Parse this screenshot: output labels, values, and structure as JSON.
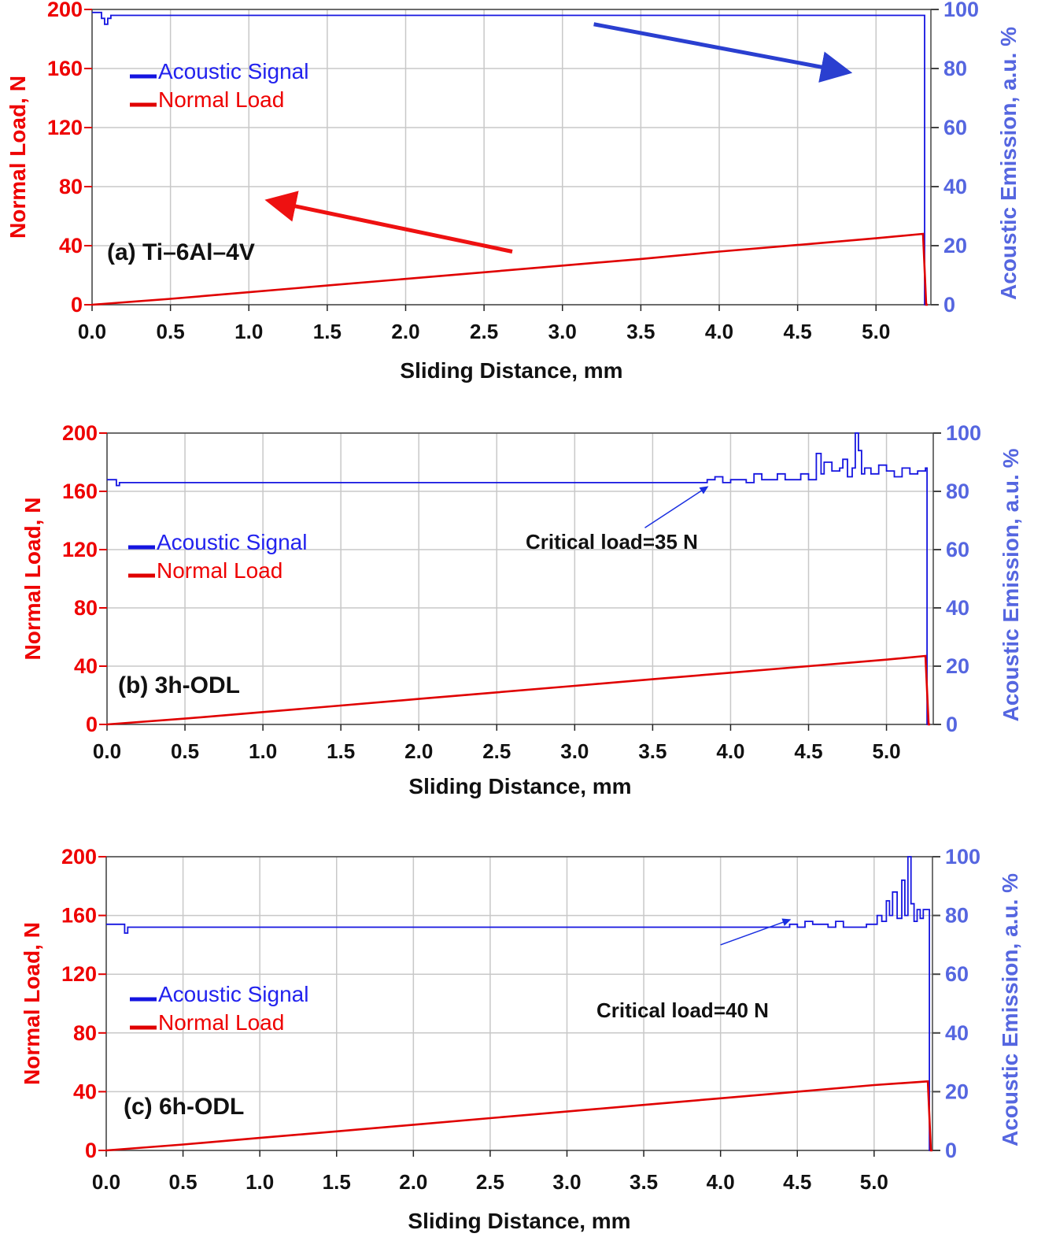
{
  "chart_data": [
    {
      "type": "line",
      "panel_label": "(a) Ti–6Al–4V",
      "xlabel": "Sliding Distance, mm",
      "ylabel": "Normal Load, N",
      "y2label": "Acoustic Emission, a.u. %",
      "x_ticks": [
        "0.0",
        "0.5",
        "1.0",
        "1.5",
        "2.0",
        "2.5",
        "3.0",
        "3.5",
        "4.0",
        "4.5",
        "5.0"
      ],
      "y_ticks": [
        "0",
        "40",
        "80",
        "120",
        "160",
        "200"
      ],
      "y2_ticks": [
        "0",
        "20",
        "40",
        "60",
        "80",
        "100"
      ],
      "xlim": [
        0,
        5.35
      ],
      "ylim": [
        0,
        200
      ],
      "y2lim": [
        0,
        100
      ],
      "grid": true,
      "legend_position": "upper-left",
      "legend": [
        "Acoustic Signal",
        "Normal Load"
      ],
      "series": [
        {
          "name": "Acoustic Signal",
          "axis": "right",
          "color": "#1515e0",
          "x": [
            0,
            0.04,
            0.06,
            0.08,
            0.1,
            0.12,
            0.15,
            0.5,
            1.0,
            2.0,
            3.0,
            4.0,
            5.0,
            5.3,
            5.31,
            5.32
          ],
          "y": [
            99,
            99,
            97,
            95,
            97,
            98,
            98,
            98,
            98,
            98,
            98,
            98,
            98,
            98,
            0,
            0
          ]
        },
        {
          "name": "Normal Load",
          "axis": "left",
          "color": "#e00000",
          "x": [
            0,
            0.5,
            1.0,
            1.5,
            2.0,
            2.5,
            3.0,
            3.5,
            4.0,
            4.5,
            5.0,
            5.3,
            5.32,
            5.33
          ],
          "y": [
            0,
            4,
            8.5,
            13,
            17.5,
            22,
            26.5,
            31,
            36,
            40.5,
            45,
            48,
            0,
            0
          ]
        }
      ],
      "arrows": [
        {
          "color": "#2a3fd0",
          "from": [
            3.2,
            190
          ],
          "to": [
            4.8,
            158
          ]
        },
        {
          "color": "#ee1111",
          "from": [
            2.68,
            36
          ],
          "to": [
            1.15,
            70
          ]
        }
      ]
    },
    {
      "type": "line",
      "panel_label": "(b) 3h-ODL",
      "xlabel": "Sliding Distance, mm",
      "ylabel": "Normal Load, N",
      "y2label": "Acoustic Emission, a.u. %",
      "x_ticks": [
        "0.0",
        "0.5",
        "1.0",
        "1.5",
        "2.0",
        "2.5",
        "3.0",
        "3.5",
        "4.0",
        "4.5",
        "5.0"
      ],
      "y_ticks": [
        "0",
        "40",
        "80",
        "120",
        "160",
        "200"
      ],
      "y2_ticks": [
        "0",
        "20",
        "40",
        "60",
        "80",
        "100"
      ],
      "xlim": [
        0,
        5.3
      ],
      "ylim": [
        0,
        200
      ],
      "y2lim": [
        0,
        100
      ],
      "grid": true,
      "legend_position": "center-left",
      "legend": [
        "Acoustic Signal",
        "Normal Load"
      ],
      "annotation": "Critical load=35 N",
      "series": [
        {
          "name": "Acoustic Signal",
          "axis": "right",
          "color": "#1515e0",
          "x": [
            0,
            0.04,
            0.06,
            0.08,
            0.1,
            0.5,
            1.0,
            2.0,
            3.0,
            3.5,
            3.85,
            3.9,
            3.95,
            4.0,
            4.1,
            4.15,
            4.2,
            4.3,
            4.35,
            4.4,
            4.45,
            4.5,
            4.55,
            4.58,
            4.6,
            4.65,
            4.7,
            4.72,
            4.75,
            4.78,
            4.8,
            4.82,
            4.84,
            4.86,
            4.9,
            4.95,
            5.0,
            5.05,
            5.1,
            5.15,
            5.2,
            5.25,
            5.26,
            5.27
          ],
          "y": [
            84,
            84,
            82,
            83,
            83,
            83,
            83,
            83,
            83,
            83,
            84,
            85,
            83,
            84,
            83,
            86,
            84,
            86,
            84,
            84,
            86,
            84,
            93,
            86,
            90,
            87,
            88,
            91,
            85,
            88,
            100,
            94,
            86,
            88,
            86,
            89,
            87,
            85,
            88,
            86,
            87,
            88,
            0,
            0
          ]
        },
        {
          "name": "Normal Load",
          "axis": "left",
          "color": "#e00000",
          "x": [
            0,
            0.5,
            1.0,
            1.5,
            2.0,
            2.5,
            3.0,
            3.5,
            4.0,
            4.5,
            5.0,
            5.25,
            5.27,
            5.28
          ],
          "y": [
            0,
            4,
            8.5,
            13,
            17.5,
            22,
            26.5,
            31,
            35.5,
            40,
            44.5,
            47,
            0,
            0
          ]
        }
      ],
      "arrows": [
        {
          "color": "#1a2fe0",
          "from": [
            3.45,
            135
          ],
          "to": [
            3.85,
            163
          ]
        }
      ]
    },
    {
      "type": "line",
      "panel_label": "(c) 6h-ODL",
      "xlabel": "Sliding Distance, mm",
      "ylabel": "Normal Load, N",
      "y2label": "Acoustic Emission, a.u. %",
      "x_ticks": [
        "0.0",
        "0.5",
        "1.0",
        "1.5",
        "2.0",
        "2.5",
        "3.0",
        "3.5",
        "4.0",
        "4.5",
        "5.0"
      ],
      "y_ticks": [
        "0",
        "40",
        "80",
        "120",
        "160",
        "200"
      ],
      "y2_ticks": [
        "0",
        "20",
        "40",
        "60",
        "80",
        "100"
      ],
      "xlim": [
        0,
        5.38
      ],
      "ylim": [
        0,
        200
      ],
      "y2lim": [
        0,
        100
      ],
      "grid": true,
      "legend_position": "center-left",
      "legend": [
        "Acoustic Signal",
        "Normal Load"
      ],
      "annotation": "Critical load=40 N",
      "series": [
        {
          "name": "Acoustic Signal",
          "axis": "right",
          "color": "#1515e0",
          "x": [
            0,
            0.1,
            0.12,
            0.14,
            0.16,
            1.0,
            2.0,
            2.5,
            3.0,
            3.5,
            4.0,
            4.3,
            4.45,
            4.5,
            4.55,
            4.6,
            4.7,
            4.75,
            4.8,
            4.85,
            4.9,
            4.95,
            5.0,
            5.02,
            5.05,
            5.08,
            5.1,
            5.12,
            5.15,
            5.18,
            5.2,
            5.22,
            5.24,
            5.26,
            5.28,
            5.3,
            5.32,
            5.34,
            5.36,
            5.38
          ],
          "y": [
            77,
            77,
            74,
            76,
            76,
            76,
            76,
            76,
            76,
            76,
            76,
            76,
            77,
            76,
            78,
            77,
            76,
            78,
            76,
            76,
            76,
            77,
            77,
            80,
            78,
            85,
            80,
            88,
            79,
            92,
            80,
            100,
            84,
            78,
            82,
            79,
            82,
            82,
            0,
            0
          ]
        },
        {
          "name": "Normal Load",
          "axis": "left",
          "color": "#e00000",
          "x": [
            0,
            0.5,
            1.0,
            1.5,
            2.0,
            2.5,
            3.0,
            3.5,
            4.0,
            4.5,
            5.0,
            5.35,
            5.37,
            5.38
          ],
          "y": [
            0,
            4,
            8.5,
            13,
            17.5,
            22,
            26.5,
            31,
            35.5,
            40,
            44.5,
            47,
            0,
            0
          ]
        }
      ],
      "arrows": [
        {
          "color": "#1a2fe0",
          "from": [
            4.0,
            140
          ],
          "to": [
            4.45,
            157
          ]
        }
      ]
    }
  ]
}
